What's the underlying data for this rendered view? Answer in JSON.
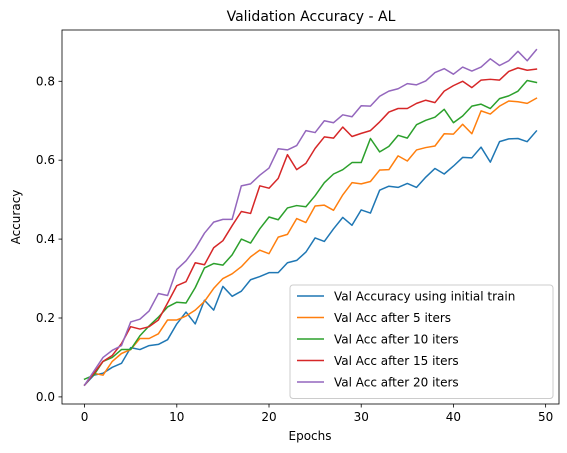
{
  "chart_data": {
    "type": "line",
    "title": "Validation Accuracy - AL",
    "xlabel": "Epochs",
    "ylabel": "Accuracy",
    "xlim": [
      -2.45,
      51.45
    ],
    "ylim": [
      -0.018,
      0.93
    ],
    "xticks": [
      0,
      10,
      20,
      30,
      40,
      50
    ],
    "yticks": [
      0.0,
      0.2,
      0.4,
      0.6,
      0.8
    ],
    "ytick_labels": [
      "0.0",
      "0.2",
      "0.4",
      "0.6",
      "0.8"
    ],
    "grid": false,
    "legend_position": "lower-right",
    "x": [
      0,
      1,
      2,
      3,
      4,
      5,
      6,
      7,
      8,
      9,
      10,
      11,
      12,
      13,
      14,
      15,
      16,
      17,
      18,
      19,
      20,
      21,
      22,
      23,
      24,
      25,
      26,
      27,
      28,
      29,
      30,
      31,
      32,
      33,
      34,
      35,
      36,
      37,
      38,
      39,
      40,
      41,
      42,
      43,
      44,
      45,
      46,
      47,
      48,
      49
    ],
    "series": [
      {
        "name": "Val Accuracy using initial train",
        "color": "#1f77b4",
        "values": [
          0.03,
          0.055,
          0.06,
          0.075,
          0.085,
          0.125,
          0.12,
          0.13,
          0.133,
          0.145,
          0.185,
          0.215,
          0.185,
          0.245,
          0.22,
          0.28,
          0.255,
          0.268,
          0.297,
          0.305,
          0.315,
          0.315,
          0.34,
          0.346,
          0.367,
          0.403,
          0.394,
          0.426,
          0.455,
          0.435,
          0.474,
          0.466,
          0.524,
          0.534,
          0.531,
          0.541,
          0.531,
          0.557,
          0.579,
          0.565,
          0.585,
          0.607,
          0.606,
          0.633,
          0.595,
          0.647,
          0.654,
          0.655,
          0.647,
          0.674
        ]
      },
      {
        "name": "Val Acc after 5 iters",
        "color": "#ff7f0e",
        "values": [
          0.03,
          0.06,
          0.055,
          0.09,
          0.11,
          0.12,
          0.148,
          0.148,
          0.16,
          0.195,
          0.195,
          0.205,
          0.22,
          0.242,
          0.275,
          0.3,
          0.312,
          0.33,
          0.355,
          0.372,
          0.363,
          0.405,
          0.412,
          0.452,
          0.442,
          0.484,
          0.486,
          0.473,
          0.512,
          0.543,
          0.54,
          0.546,
          0.575,
          0.576,
          0.611,
          0.598,
          0.626,
          0.632,
          0.636,
          0.667,
          0.666,
          0.691,
          0.667,
          0.725,
          0.717,
          0.737,
          0.75,
          0.748,
          0.744,
          0.757
        ]
      },
      {
        "name": "Val Acc after 10 iters",
        "color": "#2ca02c",
        "values": [
          0.045,
          0.055,
          0.09,
          0.1,
          0.12,
          0.12,
          0.155,
          0.18,
          0.202,
          0.228,
          0.24,
          0.238,
          0.277,
          0.327,
          0.338,
          0.334,
          0.36,
          0.4,
          0.39,
          0.426,
          0.456,
          0.449,
          0.479,
          0.485,
          0.482,
          0.51,
          0.543,
          0.565,
          0.576,
          0.594,
          0.594,
          0.655,
          0.621,
          0.635,
          0.663,
          0.656,
          0.69,
          0.701,
          0.709,
          0.729,
          0.695,
          0.712,
          0.737,
          0.742,
          0.731,
          0.756,
          0.763,
          0.775,
          0.802,
          0.797
        ]
      },
      {
        "name": "Val Acc after 15 iters",
        "color": "#d62728",
        "values": [
          0.03,
          0.06,
          0.09,
          0.105,
          0.135,
          0.178,
          0.172,
          0.178,
          0.195,
          0.238,
          0.282,
          0.292,
          0.34,
          0.335,
          0.378,
          0.396,
          0.434,
          0.47,
          0.465,
          0.535,
          0.529,
          0.554,
          0.614,
          0.576,
          0.592,
          0.63,
          0.659,
          0.656,
          0.684,
          0.66,
          0.668,
          0.675,
          0.697,
          0.722,
          0.731,
          0.731,
          0.744,
          0.752,
          0.746,
          0.775,
          0.789,
          0.8,
          0.784,
          0.803,
          0.805,
          0.803,
          0.825,
          0.834,
          0.828,
          0.831
        ]
      },
      {
        "name": "Val Acc after 20 iters",
        "color": "#9467bd",
        "values": [
          0.03,
          0.065,
          0.1,
          0.118,
          0.13,
          0.19,
          0.197,
          0.218,
          0.262,
          0.257,
          0.323,
          0.345,
          0.376,
          0.415,
          0.443,
          0.45,
          0.45,
          0.535,
          0.54,
          0.562,
          0.58,
          0.629,
          0.626,
          0.637,
          0.675,
          0.67,
          0.7,
          0.695,
          0.715,
          0.71,
          0.738,
          0.737,
          0.762,
          0.775,
          0.781,
          0.794,
          0.791,
          0.801,
          0.822,
          0.832,
          0.818,
          0.836,
          0.826,
          0.836,
          0.857,
          0.84,
          0.852,
          0.876,
          0.852,
          0.88
        ]
      }
    ]
  }
}
